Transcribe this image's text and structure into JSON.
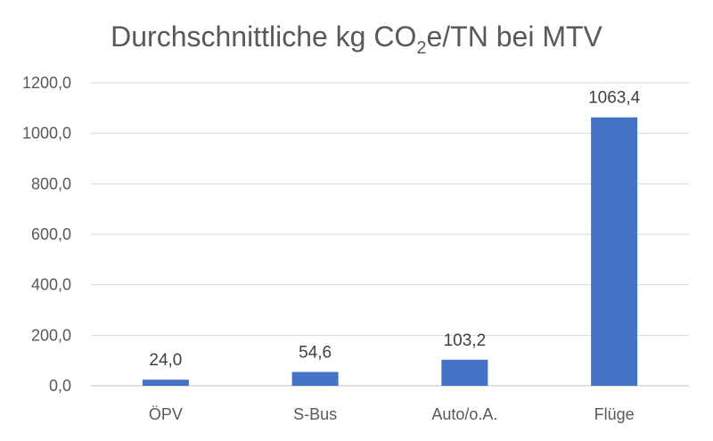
{
  "chart_data": {
    "type": "bar",
    "title": {
      "before": "Durchschnittliche kg CO",
      "subscript": "2",
      "after": "e/TN bei MTV"
    },
    "categories": [
      "ÖPV",
      "S-Bus",
      "Auto/o.A.",
      "Flüge"
    ],
    "values": [
      24.0,
      54.6,
      103.2,
      1063.4
    ],
    "data_labels": [
      "24,0",
      "54,6",
      "103,2",
      "1063,4"
    ],
    "ylim": [
      0,
      1200
    ],
    "yticks": [
      0,
      200,
      400,
      600,
      800,
      1000,
      1200
    ],
    "ytick_labels": [
      "0,0",
      "200,0",
      "400,0",
      "600,0",
      "800,0",
      "1000,0",
      "1200,0"
    ],
    "xlabel": "",
    "ylabel": "",
    "grid": true,
    "legend": "none",
    "bar_color": "#4472c4"
  }
}
